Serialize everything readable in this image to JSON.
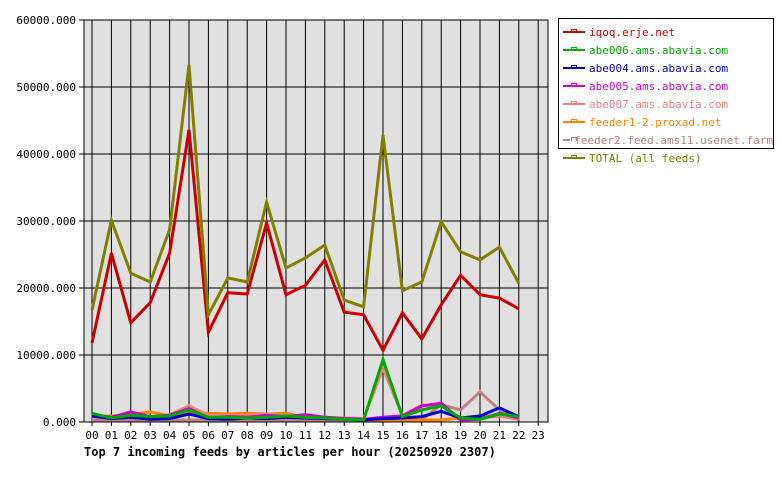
{
  "chart_data": {
    "type": "line",
    "title": "Top 7 incoming feeds by articles per hour (20250920 2307)",
    "xlabel": "",
    "ylabel": "",
    "ylim": [
      0,
      60000
    ],
    "grid": true,
    "legend_position": "right",
    "yticks": [
      "0.000",
      "10000.000",
      "20000.000",
      "30000.000",
      "40000.000",
      "50000.000",
      "60000.000"
    ],
    "categories": [
      "00",
      "01",
      "02",
      "03",
      "04",
      "05",
      "06",
      "07",
      "08",
      "09",
      "10",
      "11",
      "12",
      "13",
      "14",
      "15",
      "16",
      "17",
      "18",
      "19",
      "20",
      "21",
      "22",
      "23"
    ],
    "series": [
      {
        "name": "iqoq.erje.net",
        "color": "#cc0000",
        "values": [
          11800,
          25200,
          14800,
          17800,
          25200,
          43600,
          13400,
          19300,
          19100,
          29700,
          19000,
          20400,
          24200,
          16400,
          16000,
          10700,
          16300,
          12400,
          17500,
          21900,
          19000,
          18500,
          16900
        ]
      },
      {
        "name": "abe006.ams.abavia.com",
        "color": "#00aa00",
        "values": [
          1300,
          600,
          1000,
          800,
          900,
          1800,
          700,
          700,
          600,
          700,
          900,
          700,
          600,
          400,
          300,
          9300,
          800,
          1800,
          2400,
          600,
          400,
          1200,
          800
        ]
      },
      {
        "name": "abe004.ams.abavia.com",
        "color": "#0000cc",
        "values": [
          900,
          500,
          700,
          400,
          500,
          1200,
          500,
          400,
          600,
          500,
          700,
          600,
          500,
          400,
          300,
          500,
          600,
          800,
          1600,
          600,
          900,
          2100,
          800
        ]
      },
      {
        "name": "abe005.ams.abavia.com",
        "color": "#cc00cc",
        "values": [
          1100,
          700,
          1500,
          800,
          1000,
          2000,
          600,
          800,
          700,
          1000,
          800,
          1100,
          700,
          500,
          400,
          700,
          900,
          2400,
          2800,
          300,
          400,
          1300,
          600
        ]
      },
      {
        "name": "abe007.ams.abavia.com",
        "color": "#f08080",
        "values": [
          700,
          600,
          900,
          700,
          1100,
          2400,
          1000,
          900,
          1000,
          1200,
          1000,
          900,
          700,
          600,
          500,
          8000,
          1000,
          2500,
          2500,
          400,
          600,
          900,
          400
        ]
      },
      {
        "name": "feeder1-2.proxad.net",
        "color": "#ff8000",
        "values": [
          800,
          900,
          1100,
          1500,
          900,
          1300,
          1300,
          1200,
          1300,
          1200,
          1300,
          700,
          700,
          500,
          300,
          300,
          300,
          300,
          300,
          600,
          900,
          900,
          900
        ]
      },
      {
        "name": "feeder2.feed.ams11.usenet.farm",
        "color": "#c08080",
        "values": [
          300,
          300,
          300,
          300,
          300,
          300,
          300,
          300,
          300,
          300,
          300,
          300,
          300,
          300,
          300,
          300,
          300,
          300,
          2600,
          1800,
          4500,
          1800,
          300
        ]
      },
      {
        "name": "TOTAL (all feeds)",
        "color": "#808000",
        "values": [
          16700,
          30100,
          22200,
          20900,
          28700,
          53300,
          16000,
          21500,
          20900,
          32800,
          23000,
          24500,
          26400,
          18200,
          17200,
          42800,
          19600,
          20900,
          29900,
          25400,
          24200,
          26100,
          20700
        ]
      }
    ]
  },
  "legend": {
    "items": [
      {
        "label": "iqoq.erje.net",
        "color": "#cc0000"
      },
      {
        "label": "abe006.ams.abavia.com",
        "color": "#00aa00"
      },
      {
        "label": "abe004.ams.abavia.com",
        "color": "#0000cc"
      },
      {
        "label": "abe005.ams.abavia.com",
        "color": "#cc00cc"
      },
      {
        "label": "abe007.ams.abavia.com",
        "color": "#f08080"
      },
      {
        "label": "feeder1-2.proxad.net",
        "color": "#ff8000"
      },
      {
        "label": "feeder2.feed.ams11.usenet.farm",
        "color": "#c08080"
      },
      {
        "label": "TOTAL (all feeds)",
        "color": "#808000"
      }
    ]
  },
  "colors": {
    "plot_background": "#e0e0e0",
    "grid": "#000000"
  }
}
